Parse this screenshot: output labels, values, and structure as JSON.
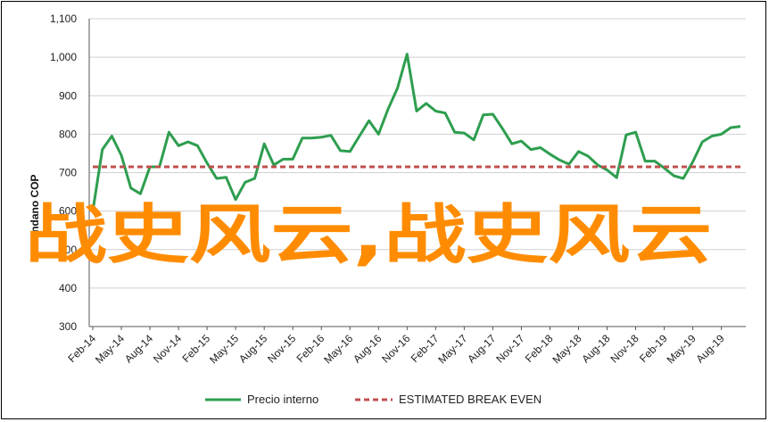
{
  "chart_data": {
    "type": "line",
    "ylabel": "Tondano COP",
    "ylim": [
      300,
      1100
    ],
    "yticks": [
      "300",
      "400",
      "500",
      "600",
      "700",
      "800",
      "900",
      "1,000",
      "1,100"
    ],
    "grid": true,
    "legend_position": "bottom",
    "x_tick_labels": [
      "Feb-14",
      "May-14",
      "Aug-14",
      "Nov-14",
      "Feb-15",
      "May-15",
      "Aug-15",
      "Nov-15",
      "Feb-16",
      "May-16",
      "Aug-16",
      "Nov-16",
      "Feb-17",
      "May-17",
      "Aug-17",
      "Nov-17",
      "Feb-18",
      "May-18",
      "Aug-18",
      "Nov-18",
      "Feb-19",
      "May-19",
      "Aug-19"
    ],
    "series": [
      {
        "name": "Precio interno",
        "color": "#2e9e4f",
        "style": "solid",
        "values": [
          600,
          760,
          795,
          745,
          660,
          645,
          715,
          715,
          805,
          770,
          780,
          770,
          725,
          685,
          688,
          630,
          675,
          685,
          775,
          720,
          735,
          735,
          790,
          790,
          792,
          797,
          757,
          755,
          795,
          835,
          800,
          865,
          920,
          1008,
          860,
          880,
          860,
          855,
          805,
          803,
          785,
          850,
          852,
          815,
          775,
          782,
          760,
          765,
          748,
          733,
          722,
          755,
          743,
          720,
          707,
          687,
          798,
          805,
          730,
          730,
          712,
          692,
          685,
          728,
          780,
          795,
          800,
          817,
          820
        ]
      },
      {
        "name": "ESTIMATED BREAK EVEN",
        "color": "#c0504d",
        "style": "dashed",
        "values": [
          715,
          715,
          715,
          715,
          715,
          715,
          715,
          715,
          715,
          715,
          715,
          715,
          715,
          715,
          715,
          715,
          715,
          715,
          715,
          715,
          715,
          715,
          715,
          715,
          715,
          715,
          715,
          715,
          715,
          715,
          715,
          715,
          715,
          715,
          715,
          715,
          715,
          715,
          715,
          715,
          715,
          715,
          715,
          715,
          715,
          715,
          715,
          715,
          715,
          715,
          715,
          715,
          715,
          715,
          715,
          715,
          715,
          715,
          715,
          715,
          715,
          715,
          715,
          715,
          715,
          715,
          715,
          715,
          715
        ]
      }
    ]
  },
  "overlay_text": "战史风云,战史风云",
  "legend": {
    "item1": "Precio interno",
    "item2": "ESTIMATED BREAK EVEN"
  }
}
